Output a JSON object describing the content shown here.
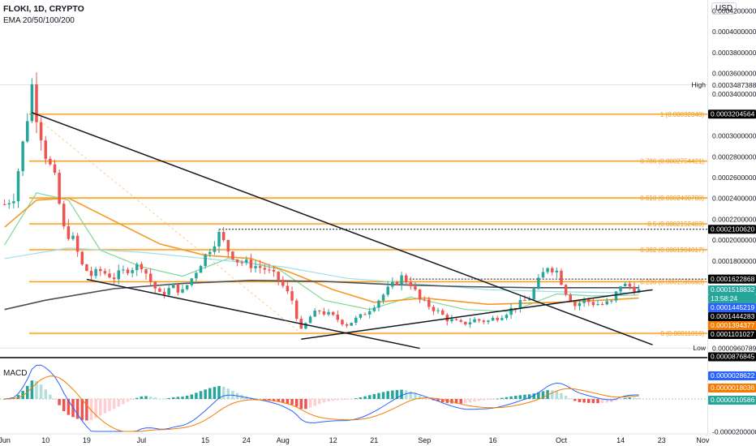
{
  "header": {
    "title": "FLOKI, 1D, CRYPTO",
    "indicator": "EMA 20/50/100/200"
  },
  "macd_label": "MACD",
  "currency": "USD",
  "chart_data": [
    {
      "type": "candlestick",
      "title": "FLOKI, 1D, CRYPTO",
      "ylim": [
        8.768e-05,
        0.00043
      ],
      "x_range": [
        "2024-05-31",
        "2024-11-02"
      ],
      "x_ticks": [
        {
          "date": "2024-06-01",
          "label": "Jun"
        },
        {
          "date": "2024-06-10",
          "label": "10"
        },
        {
          "date": "2024-06-19",
          "label": "19"
        },
        {
          "date": "2024-07-01",
          "label": "Jul"
        },
        {
          "date": "2024-07-15",
          "label": "15"
        },
        {
          "date": "2024-07-24",
          "label": "24"
        },
        {
          "date": "2024-08-01",
          "label": "Aug"
        },
        {
          "date": "2024-08-12",
          "label": "12"
        },
        {
          "date": "2024-08-21",
          "label": "21"
        },
        {
          "date": "2024-09-01",
          "label": "Sep"
        },
        {
          "date": "2024-09-16",
          "label": "16"
        },
        {
          "date": "2024-10-01",
          "label": "Oct"
        },
        {
          "date": "2024-10-14",
          "label": "14"
        },
        {
          "date": "2024-10-23",
          "label": "23"
        },
        {
          "date": "2024-11-01",
          "label": "Nov"
        }
      ],
      "y_ticks": [
        "0.0004200000",
        "0.0004000000",
        "0.0003800000",
        "0.0003600000",
        "0.0003400000",
        "0.0003000000",
        "0.0002800000",
        "0.0002600000",
        "0.0002400000",
        "0.0002200000",
        "0.0002000000",
        "0.0001800000"
      ],
      "price_path": [
        [
          "2024-06-01",
          0.000234
        ],
        [
          "2024-06-03",
          0.000242
        ],
        [
          "2024-06-05",
          0.000292
        ],
        [
          "2024-06-06",
          0.000318
        ],
        [
          "2024-06-07",
          0.000348
        ],
        [
          "2024-06-08",
          0.00032
        ],
        [
          "2024-06-10",
          0.000282
        ],
        [
          "2024-06-12",
          0.000258
        ],
        [
          "2024-06-14",
          0.00021
        ],
        [
          "2024-06-16",
          0.0002
        ],
        [
          "2024-06-18",
          0.000175
        ],
        [
          "2024-06-20",
          0.000166
        ],
        [
          "2024-06-22",
          0.00017
        ],
        [
          "2024-06-25",
          0.000164
        ],
        [
          "2024-06-28",
          0.000172
        ],
        [
          "2024-07-01",
          0.000176
        ],
        [
          "2024-07-03",
          0.00016
        ],
        [
          "2024-07-05",
          0.000147
        ],
        [
          "2024-07-08",
          0.000155
        ],
        [
          "2024-07-10",
          0.00015
        ],
        [
          "2024-07-12",
          0.000163
        ],
        [
          "2024-07-14",
          0.000178
        ],
        [
          "2024-07-16",
          0.000192
        ],
        [
          "2024-07-18",
          0.000205
        ],
        [
          "2024-07-20",
          0.00019
        ],
        [
          "2024-07-22",
          0.00018
        ],
        [
          "2024-07-25",
          0.000176
        ],
        [
          "2024-07-28",
          0.000172
        ],
        [
          "2024-07-31",
          0.000162
        ],
        [
          "2024-08-03",
          0.000142
        ],
        [
          "2024-08-05",
          0.000112
        ],
        [
          "2024-08-07",
          0.000126
        ],
        [
          "2024-08-09",
          0.000132
        ],
        [
          "2024-08-12",
          0.000126
        ],
        [
          "2024-08-15",
          0.000119
        ],
        [
          "2024-08-18",
          0.000126
        ],
        [
          "2024-08-21",
          0.000138
        ],
        [
          "2024-08-24",
          0.000152
        ],
        [
          "2024-08-27",
          0.000164
        ],
        [
          "2024-08-29",
          0.000158
        ],
        [
          "2024-08-31",
          0.000142
        ],
        [
          "2024-09-03",
          0.000134
        ],
        [
          "2024-09-06",
          0.000124
        ],
        [
          "2024-09-09",
          0.000119
        ],
        [
          "2024-09-12",
          0.000123
        ],
        [
          "2024-09-15",
          0.000122
        ],
        [
          "2024-09-18",
          0.000128
        ],
        [
          "2024-09-21",
          0.000136
        ],
        [
          "2024-09-24",
          0.000144
        ],
        [
          "2024-09-26",
          0.00016
        ],
        [
          "2024-09-28",
          0.000175
        ],
        [
          "2024-09-30",
          0.00017
        ],
        [
          "2024-10-02",
          0.00015
        ],
        [
          "2024-10-04",
          0.000137
        ],
        [
          "2024-10-06",
          0.000142
        ],
        [
          "2024-10-08",
          0.000139
        ],
        [
          "2024-10-10",
          0.000138
        ],
        [
          "2024-10-12",
          0.00014
        ],
        [
          "2024-10-14",
          0.000157
        ],
        [
          "2024-10-16",
          0.000155
        ],
        [
          "2024-10-18",
          0.000151
        ]
      ],
      "ema_lines": [
        {
          "name": "EMA 20",
          "color": "#7fd79a",
          "points": [
            [
              "2024-06-01",
              0.000195
            ],
            [
              "2024-06-08",
              0.000245
            ],
            [
              "2024-06-15",
              0.000238
            ],
            [
              "2024-06-22",
              0.00019
            ],
            [
              "2024-07-01",
              0.000174
            ],
            [
              "2024-07-10",
              0.000165
            ],
            [
              "2024-07-20",
              0.000182
            ],
            [
              "2024-07-31",
              0.000172
            ],
            [
              "2024-08-10",
              0.000142
            ],
            [
              "2024-08-20",
              0.000133
            ],
            [
              "2024-08-29",
              0.000145
            ],
            [
              "2024-09-10",
              0.000133
            ],
            [
              "2024-09-20",
              0.000131
            ],
            [
              "2024-09-30",
              0.000148
            ],
            [
              "2024-10-08",
              0.000146
            ],
            [
              "2024-10-18",
              0.000147
            ]
          ]
        },
        {
          "name": "EMA 50",
          "color": "#f59a23",
          "points": [
            [
              "2024-06-01",
              0.000212
            ],
            [
              "2024-06-08",
              0.000238
            ],
            [
              "2024-06-15",
              0.00024
            ],
            [
              "2024-06-25",
              0.000218
            ],
            [
              "2024-07-05",
              0.000196
            ],
            [
              "2024-07-15",
              0.000185
            ],
            [
              "2024-07-25",
              0.000182
            ],
            [
              "2024-08-03",
              0.000168
            ],
            [
              "2024-08-12",
              0.000152
            ],
            [
              "2024-08-21",
              0.00014
            ],
            [
              "2024-09-01",
              0.000144
            ],
            [
              "2024-09-15",
              0.000138
            ],
            [
              "2024-09-30",
              0.00014
            ],
            [
              "2024-10-10",
              0.000142
            ],
            [
              "2024-10-18",
              0.000144
            ]
          ]
        },
        {
          "name": "EMA 100",
          "color": "#9be0e8",
          "points": [
            [
              "2024-06-01",
              0.000182
            ],
            [
              "2024-06-15",
              0.000192
            ],
            [
              "2024-07-01",
              0.000188
            ],
            [
              "2024-07-15",
              0.000182
            ],
            [
              "2024-08-01",
              0.000174
            ],
            [
              "2024-08-15",
              0.000163
            ],
            [
              "2024-09-01",
              0.000157
            ],
            [
              "2024-09-15",
              0.000152
            ],
            [
              "2024-10-01",
              0.00015
            ],
            [
              "2024-10-18",
              0.000149
            ]
          ]
        },
        {
          "name": "EMA 200",
          "color": "#4a4e59",
          "points": [
            [
              "2024-06-01",
              0.000133
            ],
            [
              "2024-06-10",
              0.000142
            ],
            [
              "2024-06-25",
              0.000153
            ],
            [
              "2024-07-10",
              0.000158
            ],
            [
              "2024-07-25",
              0.000161
            ],
            [
              "2024-08-10",
              0.00016
            ],
            [
              "2024-08-25",
              0.000157
            ],
            [
              "2024-09-10",
              0.000155
            ],
            [
              "2024-09-25",
              0.000154
            ],
            [
              "2024-10-10",
              0.000154
            ],
            [
              "2024-10-18",
              0.000154
            ]
          ]
        }
      ],
      "fib_levels": [
        {
          "ratio": "1",
          "value": "0.00032048",
          "label": "1 (0.00032048)"
        },
        {
          "ratio": "0.786",
          "value": "0.00027544",
          "label": "0.786 (0.0002754421)"
        },
        {
          "ratio": "0.618",
          "value": "0.00024008",
          "label": "0.618 (0.0002400788)"
        },
        {
          "ratio": "0.5",
          "value": "0.00021524",
          "label": "0.5 (0.0002152403)"
        },
        {
          "ratio": "0.382",
          "value": "0.00019040",
          "label": "0.382 (0.0001904017)"
        },
        {
          "ratio": "0.236",
          "value": "0.00015967",
          "label": "0.236 (0.0001596693)"
        },
        {
          "ratio": "0",
          "value": "0.00011016",
          "label": "0 (0.00011016)"
        }
      ],
      "trendlines": [
        {
          "from": [
            "2024-06-07",
            0.000322
          ],
          "to": [
            "2024-10-21",
            9.92e-05
          ]
        },
        {
          "from": [
            "2024-06-19",
            0.000162
          ],
          "to": [
            "2024-08-31",
            9.58e-05
          ]
        },
        {
          "from": [
            "2024-08-05",
            0.0001046
          ],
          "to": [
            "2024-10-21",
            0.000152
          ]
        }
      ],
      "dotted_levels": [
        {
          "value": 0.000210062,
          "from": "2024-07-18"
        },
        {
          "value": 0.000162287,
          "from": "2024-08-28"
        }
      ],
      "high": {
        "label": "High",
        "value": "0.0003487388"
      },
      "low": {
        "label": "Low",
        "value": "0.0000960789"
      },
      "price_labels": [
        {
          "value": "0.0003204564",
          "bg": "#000000",
          "fg": "#ffffff"
        },
        {
          "value": "0.0002100620",
          "bg": "#000000",
          "fg": "#ffffff"
        },
        {
          "value": "0.0001622868",
          "bg": "#000000",
          "fg": "#ffffff"
        },
        {
          "value": "0.0001518832",
          "bg": "#26a69a",
          "fg": "#ffffff"
        },
        {
          "value": "13:58:24",
          "bg": "#26a69a",
          "fg": "#ffffff"
        },
        {
          "value": "0.0001445219",
          "bg": "#2962ff",
          "fg": "#ffffff"
        },
        {
          "value": "0.0001444283",
          "bg": "#000000",
          "fg": "#ffffff"
        },
        {
          "value": "0.0001394377",
          "bg": "#f57c00",
          "fg": "#ffffff"
        },
        {
          "value": "0.0001101027",
          "bg": "#000000",
          "fg": "#ffffff"
        },
        {
          "value": "0.0000876845",
          "bg": "#000000",
          "fg": "#ffffff"
        }
      ]
    },
    {
      "type": "macd",
      "title": "MACD",
      "y_ticks": [
        "-0.0000200000"
      ],
      "price_labels": [
        {
          "value": "0.0000028622",
          "bg": "#2962ff",
          "fg": "#ffffff"
        },
        {
          "value": "0.0000018036",
          "bg": "#f57c00",
          "fg": "#ffffff"
        },
        {
          "value": "0.0000010586",
          "bg": "#26a69a",
          "fg": "#ffffff"
        }
      ]
    }
  ]
}
